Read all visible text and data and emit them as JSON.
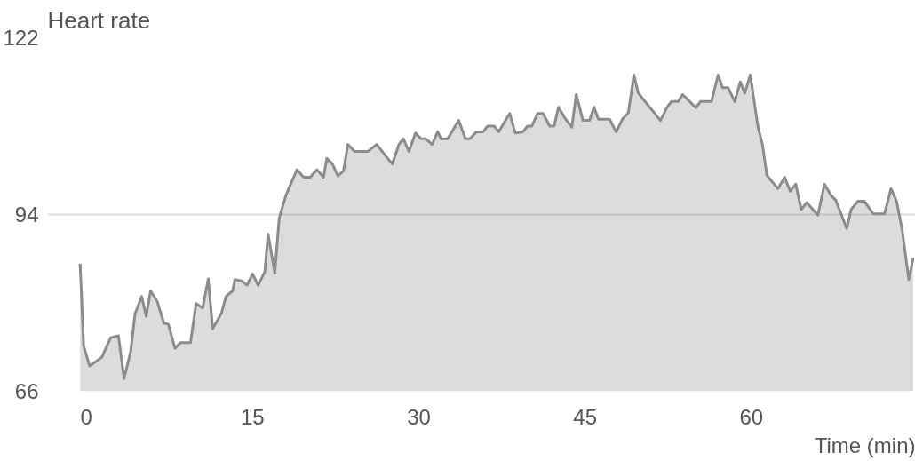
{
  "chart_data": {
    "type": "area",
    "title": "Heart rate",
    "xlabel": "Time (min)",
    "xlim": [
      -3.5,
      74.8
    ],
    "ylim": [
      66,
      122
    ],
    "xticks": [
      0,
      15,
      30,
      45,
      60
    ],
    "yticks": [
      66,
      94,
      122
    ],
    "grid": "y",
    "series": [
      {
        "color": "#8c8c8c",
        "x": [
          -0.56,
          -0.24,
          0.3,
          1.4,
          2.2,
          2.9,
          3.4,
          4.0,
          4.4,
          5.0,
          5.4,
          5.8,
          6.4,
          7.0,
          7.4,
          8.0,
          8.5,
          9.4,
          9.9,
          10.5,
          11.0,
          11.4,
          12.2,
          12.6,
          13.2,
          13.4,
          14.0,
          14.5,
          15.0,
          15.5,
          16.1,
          16.4,
          17.0,
          17.4,
          18.0,
          19.0,
          19.6,
          20.2,
          20.8,
          21.4,
          21.7,
          22.2,
          22.7,
          23.2,
          23.6,
          24.2,
          25.4,
          26.2,
          27.0,
          27.6,
          28.2,
          28.6,
          29.1,
          29.7,
          30.2,
          30.6,
          31.2,
          31.7,
          32.0,
          32.6,
          33.6,
          34.2,
          34.6,
          35.2,
          35.8,
          36.2,
          36.8,
          37.2,
          38.2,
          38.7,
          39.4,
          39.8,
          40.2,
          40.7,
          41.2,
          41.8,
          42.2,
          42.6,
          43.2,
          43.8,
          44.2,
          44.8,
          45.4,
          45.8,
          46.2,
          47.2,
          47.8,
          48.4,
          48.9,
          49.4,
          49.8,
          51.8,
          52.4,
          52.8,
          53.4,
          53.8,
          55.0,
          55.4,
          56.4,
          57.0,
          57.4,
          57.9,
          58.5,
          59.0,
          59.4,
          59.9,
          60.6,
          61.0,
          61.4,
          62.4,
          63.0,
          63.5,
          64.0,
          64.5,
          65.0,
          66.0,
          66.6,
          67.2,
          67.6,
          68.6,
          69.0,
          69.6,
          70.2,
          71.0,
          72.0,
          72.6,
          73.1,
          73.6,
          74.2,
          74.6
        ],
        "values": [
          86.2,
          73.2,
          70.0,
          71.4,
          74.5,
          74.8,
          68.0,
          72.3,
          78.3,
          81.0,
          77.9,
          81.9,
          80.2,
          76.8,
          76.6,
          72.8,
          73.7,
          73.7,
          79.9,
          79.2,
          83.8,
          75.9,
          78.4,
          81.0,
          81.9,
          83.7,
          83.5,
          82.8,
          84.6,
          82.8,
          84.9,
          90.9,
          84.7,
          93.4,
          97.0,
          101.1,
          99.9,
          99.9,
          101.1,
          99.9,
          102.9,
          102.0,
          100.1,
          100.9,
          105.1,
          104.0,
          104.0,
          105.1,
          103.3,
          102.0,
          105.1,
          106.0,
          104.0,
          106.9,
          106.0,
          106.0,
          105.1,
          107.1,
          106.0,
          106.0,
          108.9,
          106.0,
          106.0,
          107.1,
          107.1,
          108.0,
          108.0,
          107.1,
          110.0,
          106.9,
          107.1,
          108.0,
          108.0,
          110.0,
          110.0,
          108.0,
          108.0,
          111.0,
          109.2,
          107.8,
          113.0,
          108.9,
          108.9,
          111.0,
          109.1,
          109.1,
          107.1,
          109.2,
          110.1,
          116.1,
          113.2,
          108.9,
          111.0,
          111.9,
          111.9,
          113.0,
          110.9,
          111.9,
          111.9,
          116.1,
          114.1,
          114.1,
          111.9,
          115.0,
          113.2,
          116.1,
          107.8,
          105.1,
          100.2,
          98.1,
          99.9,
          97.7,
          98.8,
          94.8,
          95.9,
          93.9,
          98.8,
          97.0,
          96.3,
          91.8,
          94.8,
          96.1,
          96.1,
          94.1,
          94.1,
          98.1,
          96.1,
          91.6,
          83.7,
          87.1
        ]
      }
    ]
  }
}
